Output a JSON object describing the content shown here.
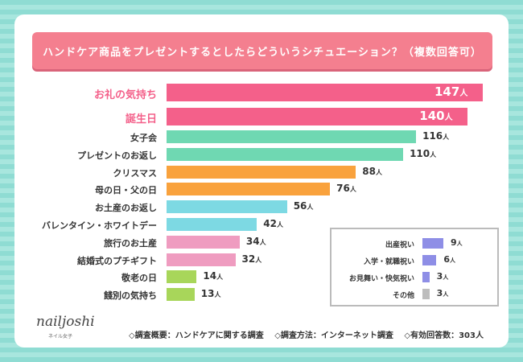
{
  "chart_data": {
    "type": "bar",
    "orientation": "horizontal",
    "title": "ハンドケア商品をプレゼントするとしたらどういうシチュエーション？（複数回答可）",
    "unit": "人",
    "categories": [
      "お礼の気持ち",
      "誕生日",
      "女子会",
      "プレゼントのお返し",
      "クリスマス",
      "母の日・父の日",
      "お土産のお返し",
      "バレンタイン・ホワイトデー",
      "旅行のお土産",
      "結婚式のプチギフト",
      "敬老の日",
      "餞別の気持ち"
    ],
    "values": [
      147,
      140,
      116,
      110,
      88,
      76,
      56,
      42,
      34,
      32,
      14,
      13
    ],
    "colors": [
      "#f4608a",
      "#f4608a",
      "#6fd8b2",
      "#6fd8b2",
      "#f9a23d",
      "#f9a23d",
      "#7dd9e3",
      "#7dd9e3",
      "#ef9cc0",
      "#ef9cc0",
      "#a8d65a",
      "#a8d65a"
    ],
    "inset": {
      "categories": [
        "出産祝い",
        "入学・就職祝い",
        "お見舞い・快気祝い",
        "その他"
      ],
      "values": [
        9,
        6,
        3,
        3
      ],
      "colors": [
        "#8e8ee6",
        "#8e8ee6",
        "#8e8ee6",
        "#bdbdbd"
      ]
    }
  },
  "logo": {
    "name": "nailjoshi",
    "sub": "ネイル女子"
  },
  "footer": [
    "◇調査概要：ハンドケアに関する調査",
    "◇調査方法：インターネット調査",
    "◇有効回答数：303人"
  ]
}
